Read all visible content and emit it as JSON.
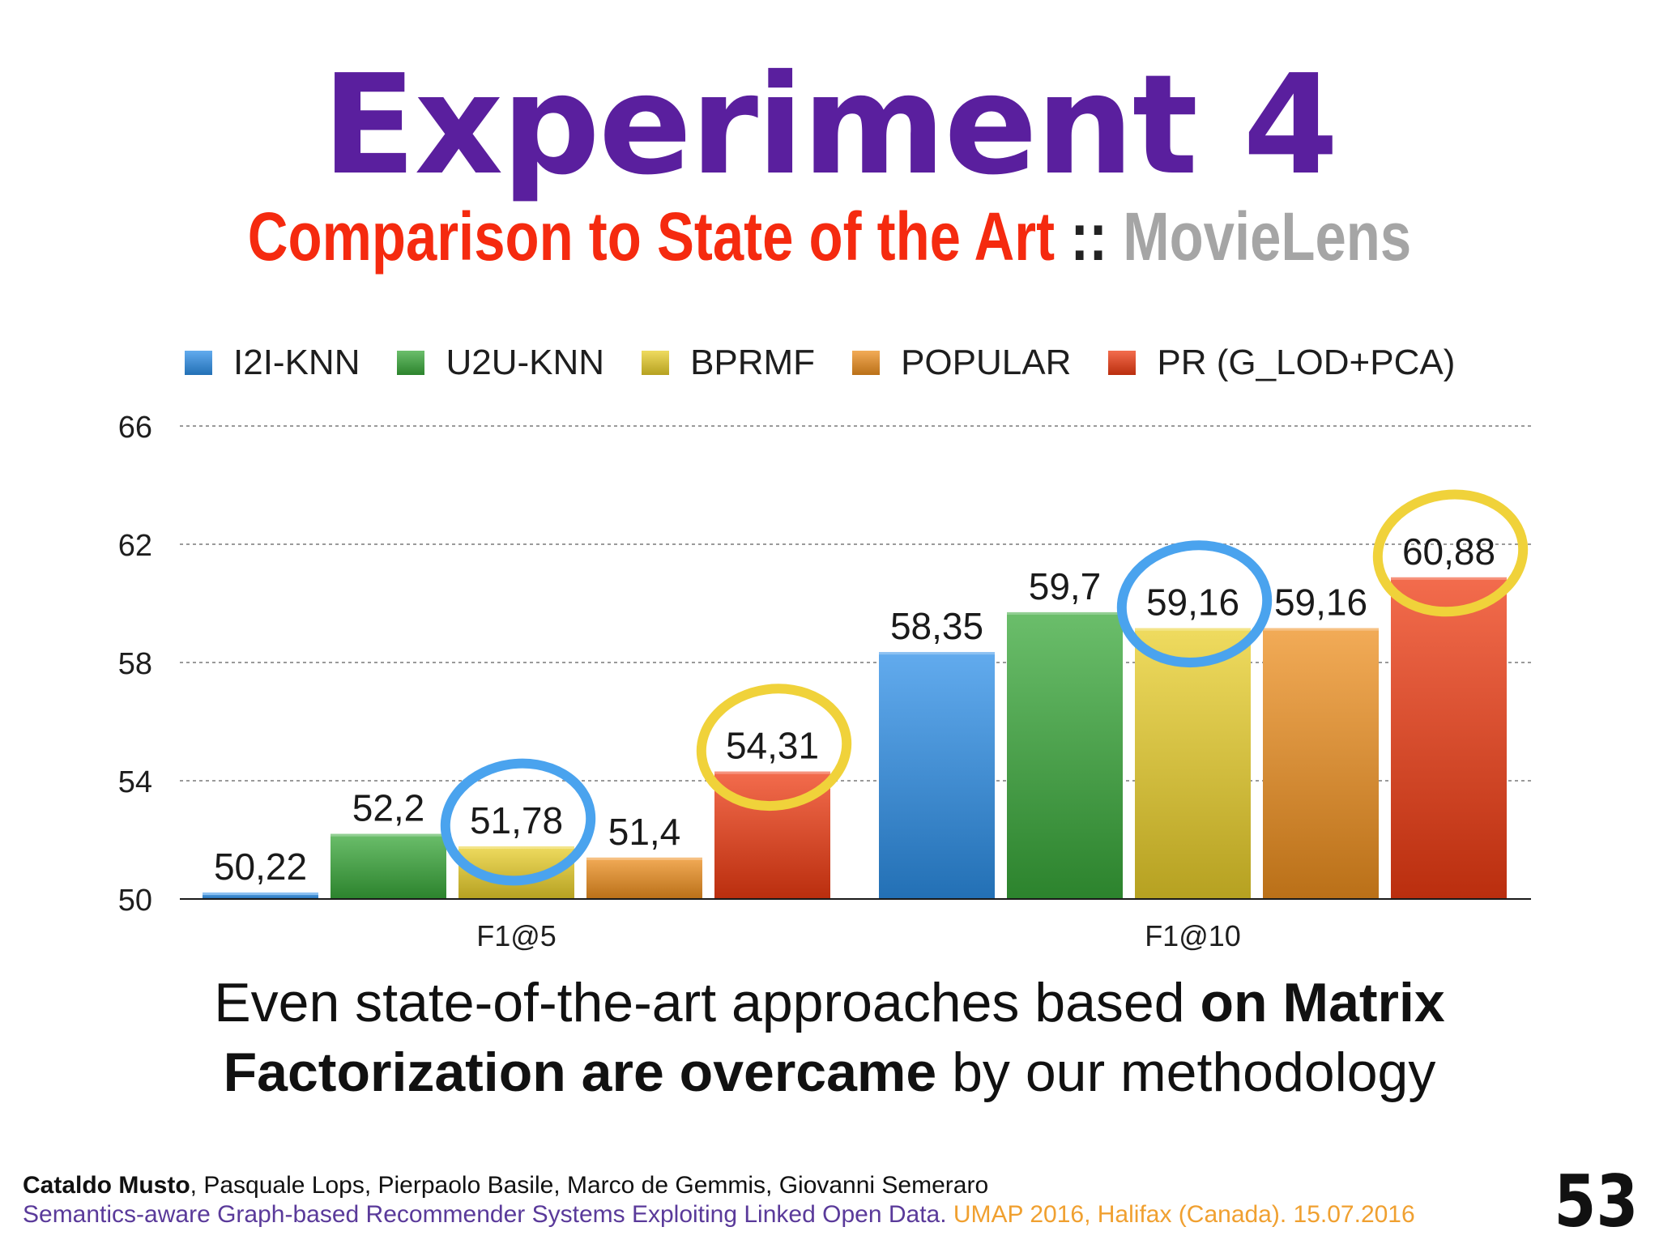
{
  "slide": {
    "title": "Experiment 4",
    "subtitle_main": "Comparison to State of the Art",
    "subtitle_sep": " :: ",
    "subtitle_dataset": "MovieLens",
    "message_pre": "Even state-of-the-art approaches based ",
    "message_bold1": "on Matrix",
    "message_bold2": "Factorization are overcame",
    "message_post": " by our methodology",
    "footer_author_bold": "Cataldo Musto",
    "footer_authors_rest": ", Pasquale Lops, Pierpaolo Basile, Marco de Gemmis, Giovanni Semeraro",
    "footer_paper": "Semantics-aware Graph-based Recommender Systems Exploiting Linked Open Data.",
    "footer_venue": " UMAP 2016, Halifax (Canada). 15.07.2016",
    "page_number": "53"
  },
  "colors": {
    "title": "#5a1f9e",
    "subtitle_red": "#f52a0f",
    "subtitle_gray": "#a5a5a5",
    "highlight_blue": "#4aa3ee",
    "highlight_yellow": "#f0d23a"
  },
  "chart_data": {
    "type": "bar",
    "categories": [
      "F1@5",
      "F1@10"
    ],
    "series": [
      {
        "name": "I2I-KNN",
        "values": [
          50.22,
          58.35
        ],
        "labels": [
          "50,22",
          "58,35"
        ],
        "color": "#2d8fe8"
      },
      {
        "name": "U2U-KNN",
        "values": [
          52.2,
          59.7
        ],
        "labels": [
          "52,2",
          "59,7"
        ],
        "color": "#39a83a"
      },
      {
        "name": "BPRMF",
        "values": [
          51.78,
          59.16
        ],
        "labels": [
          "51,78",
          "59,16"
        ],
        "color": "#e9cf2a"
      },
      {
        "name": "POPULAR",
        "values": [
          51.4,
          59.16
        ],
        "labels": [
          "51,4",
          "59,16"
        ],
        "color": "#ee8f1f"
      },
      {
        "name": "PR (G_LOD+PCA)",
        "values": [
          54.31,
          60.88
        ],
        "labels": [
          "54,31",
          "60,88"
        ],
        "color": "#ef3b12"
      }
    ],
    "yticks": [
      "50",
      "54",
      "58",
      "62",
      "66"
    ],
    "ylim": [
      50,
      66
    ],
    "grid": true,
    "legend_position": "top",
    "highlights": [
      {
        "series": "BPRMF",
        "category": "F1@5",
        "color": "blue"
      },
      {
        "series": "PR (G_LOD+PCA)",
        "category": "F1@5",
        "color": "yellow"
      },
      {
        "series": "BPRMF",
        "category": "F1@10",
        "color": "blue"
      },
      {
        "series": "PR (G_LOD+PCA)",
        "category": "F1@10",
        "color": "yellow"
      }
    ]
  }
}
